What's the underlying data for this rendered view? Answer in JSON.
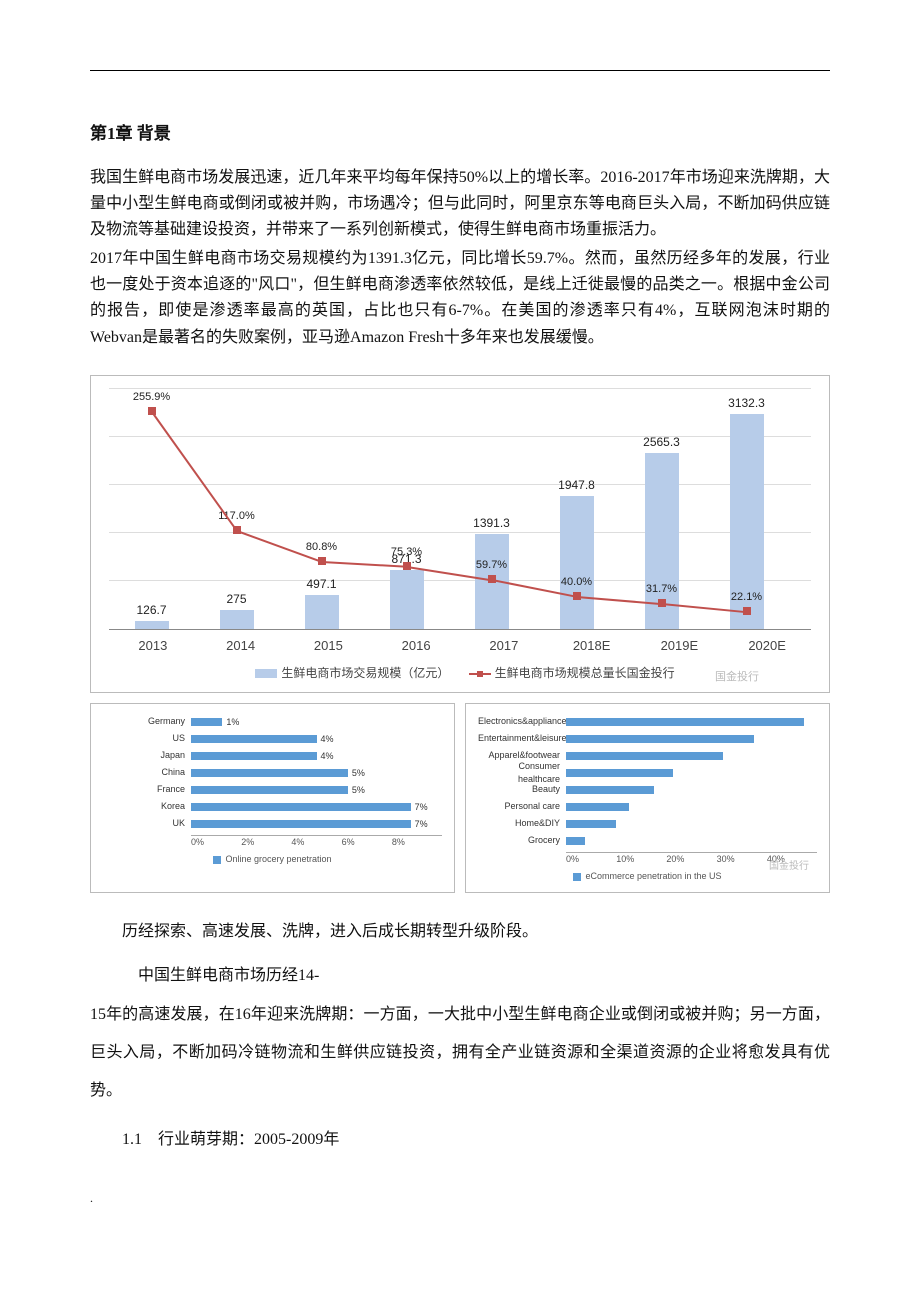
{
  "heading": "第1章  背景",
  "paragraphs": {
    "p1": "我国生鲜电商市场发展迅速，近几年来平均每年保持50%以上的增长率。2016-2017年市场迎来洗牌期，大量中小型生鲜电商或倒闭或被并购，市场遇冷；但与此同时，阿里京东等电商巨头入局，不断加码供应链及物流等基础建设投资，并带来了一系列创新模式，使得生鲜电商市场重振活力。",
    "p2": "2017年中国生鲜电商市场交易规模约为1391.3亿元，同比增长59.7%。然而，虽然历经多年的发展，行业也一度处于资本追逐的\"风口\"，但生鲜电商渗透率依然较低，是线上迁徙最慢的品类之一。根据中金公司的报告，即使是渗透率最高的英国，占比也只有6-7%。在美国的渗透率只有4%，互联网泡沫时期的Webvan是最著名的失败案例，亚马逊Amazon Fresh十多年来也发展缓慢。"
  },
  "main_chart": {
    "type": "bar+line",
    "categories": [
      "2013",
      "2014",
      "2015",
      "2016",
      "2017",
      "2018E",
      "2019E",
      "2020E"
    ],
    "bar_values": [
      126.7,
      275,
      497.1,
      871.3,
      1391.3,
      1947.8,
      2565.3,
      3132.3
    ],
    "bar_labels": [
      "126.7",
      "275",
      "497.1",
      "871.3",
      "1391.3",
      "1947.8",
      "2565.3",
      "3132.3"
    ],
    "line_values": [
      255.9,
      117.0,
      80.8,
      75.3,
      59.7,
      40.0,
      31.7,
      22.1
    ],
    "line_labels": [
      "255.9%",
      "117.0%",
      "80.8%",
      "75.3%",
      "59.7%",
      "40.0%",
      "31.7%",
      "22.1%"
    ],
    "bar_color": "#b7cce9",
    "line_color": "#c0504d",
    "grid_color": "#dddddd",
    "bar_max": 3500,
    "line_max": 280,
    "legend_bar": "生鲜电商市场交易规模（亿元）",
    "legend_line": "生鲜电商市场规模总量长国金投行",
    "watermark": "国金投行"
  },
  "left_chart": {
    "type": "hbar",
    "categories": [
      "Germany",
      "US",
      "Japan",
      "China",
      "France",
      "Korea",
      "UK"
    ],
    "values": [
      1,
      4,
      4,
      5,
      5,
      7,
      7
    ],
    "labels": [
      "1%",
      "4%",
      "4%",
      "5%",
      "5%",
      "7%",
      "7%"
    ],
    "xmax": 8,
    "xticks": [
      "0%",
      "2%",
      "4%",
      "6%",
      "8%"
    ],
    "legend": "Online grocery penetration",
    "bar_color": "#5b9bd5"
  },
  "right_chart": {
    "type": "hbar",
    "categories": [
      "Electronics&appliance",
      "Entertainment&leisure",
      "Apparel&footwear",
      "Consumer healthcare",
      "Beauty",
      "Personal care",
      "Home&DIY",
      "Grocery"
    ],
    "values": [
      38,
      30,
      25,
      17,
      14,
      10,
      8,
      3
    ],
    "xmax": 40,
    "xticks": [
      "0%",
      "10%",
      "20%",
      "30%",
      "40%"
    ],
    "legend": "eCommerce penetration in the US",
    "bar_color": "#5b9bd5",
    "watermark": "国金投行"
  },
  "body": {
    "line1": "历经探索、高速发展、洗牌，进入后成长期转型升级阶段。",
    "line2": "中国生鲜电商市场历经14-",
    "line3": "15年的高速发展，在16年迎来洗牌期：一方面，一大批中小型生鲜电商企业或倒闭或被并购；另一方面，巨头入局，不断加码冷链物流和生鲜供应链投资，拥有全产业链资源和全渠道资源的企业将愈发具有优势。",
    "sec": "1.1　行业萌芽期：2005-2009年"
  },
  "dot": "."
}
